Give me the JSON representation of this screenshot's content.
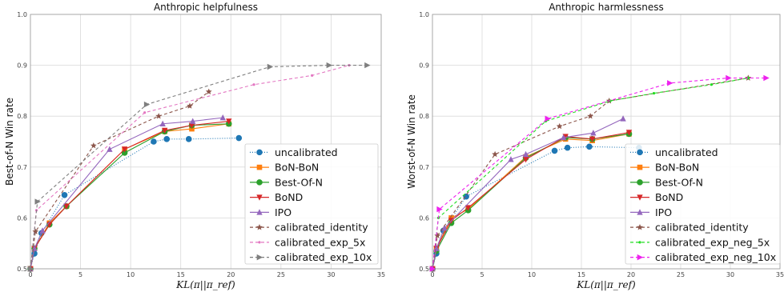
{
  "chart_data": [
    {
      "type": "line",
      "title": "Anthropic helpfulness",
      "xlabel": "KL(π||π_ref)",
      "ylabel": "Best-of-N Win rate",
      "xlim": [
        0,
        35
      ],
      "ylim": [
        0.5,
        1.0
      ],
      "xticks": [
        "0",
        "5",
        "10",
        "15",
        "20",
        "25",
        "30",
        "35"
      ],
      "yticks": [
        "0.5",
        "0.6",
        "0.7",
        "0.8",
        "0.9",
        "1.0"
      ],
      "grid": true,
      "legend_position": "lower-right",
      "series": [
        {
          "name": "uncalibrated",
          "color": "#1f77b4",
          "marker": "circle",
          "dash": "1,2",
          "x": [
            0,
            0.4,
            1.1,
            3.4,
            12.3,
            13.6,
            15.8,
            20.8
          ],
          "y": [
            0.5,
            0.53,
            0.57,
            0.645,
            0.75,
            0.755,
            0.755,
            0.757
          ]
        },
        {
          "name": "BoN-BoN",
          "color": "#ff7f0e",
          "marker": "square",
          "dash": "",
          "x": [
            0,
            0.4,
            1.9,
            3.6,
            9.4,
            13.4,
            16.1,
            19.8
          ],
          "y": [
            0.5,
            0.54,
            0.59,
            0.623,
            0.735,
            0.77,
            0.775,
            0.785
          ]
        },
        {
          "name": "Best-Of-N",
          "color": "#2ca02c",
          "marker": "circle",
          "dash": "",
          "x": [
            0,
            0.4,
            1.9,
            3.6,
            9.4,
            13.4,
            16.1,
            19.8
          ],
          "y": [
            0.5,
            0.54,
            0.587,
            0.623,
            0.728,
            0.77,
            0.782,
            0.785
          ]
        },
        {
          "name": "BoND",
          "color": "#d62728",
          "marker": "triangle-down",
          "dash": "",
          "x": [
            0,
            0.4,
            1.9,
            3.6,
            9.4,
            13.4,
            16.1,
            19.8
          ],
          "y": [
            0.5,
            0.54,
            0.587,
            0.623,
            0.735,
            0.772,
            0.782,
            0.79
          ]
        },
        {
          "name": "IPO",
          "color": "#9467bd",
          "marker": "triangle-up",
          "dash": "",
          "x": [
            0,
            0.4,
            1.2,
            7.9,
            13.2,
            16.2,
            19.2
          ],
          "y": [
            0.5,
            0.54,
            0.575,
            0.735,
            0.785,
            0.79,
            0.797
          ]
        },
        {
          "name": "calibrated_identity",
          "color": "#8c564b",
          "marker": "star",
          "dash": "4,3",
          "x": [
            0,
            0.5,
            6.3,
            12.8,
            15.9,
            17.8
          ],
          "y": [
            0.5,
            0.573,
            0.742,
            0.8,
            0.82,
            0.848
          ]
        },
        {
          "name": "calibrated_exp_5x",
          "color": "#e377c2",
          "marker": "dot",
          "dash": "4,3",
          "x": [
            0,
            0.6,
            11.4,
            22.3,
            28.1,
            31.8
          ],
          "y": [
            0.5,
            0.615,
            0.807,
            0.862,
            0.88,
            0.9
          ]
        },
        {
          "name": "calibrated_exp_10x",
          "color": "#7f7f7f",
          "marker": "triangle-right",
          "dash": "4,3",
          "x": [
            0,
            0.7,
            11.6,
            23.9,
            29.8,
            33.6
          ],
          "y": [
            0.5,
            0.632,
            0.823,
            0.897,
            0.9,
            0.9
          ]
        }
      ]
    },
    {
      "type": "line",
      "title": "Anthropic harmlessness",
      "xlabel": "KL(π||π_ref)",
      "ylabel": "Worst-of-N Win rate",
      "xlim": [
        0,
        35
      ],
      "ylim": [
        0.5,
        1.0
      ],
      "xticks": [
        "0",
        "5",
        "10",
        "15",
        "20",
        "25",
        "30",
        "35"
      ],
      "yticks": [
        "0.5",
        "0.6",
        "0.7",
        "0.8",
        "0.9",
        "1.0"
      ],
      "grid": true,
      "legend_position": "lower-right",
      "series": [
        {
          "name": "uncalibrated",
          "color": "#1f77b4",
          "marker": "circle",
          "dash": "1,2",
          "x": [
            0,
            0.4,
            1.1,
            3.4,
            12.3,
            13.6,
            15.8,
            20.8
          ],
          "y": [
            0.5,
            0.53,
            0.575,
            0.642,
            0.732,
            0.738,
            0.74,
            0.738
          ]
        },
        {
          "name": "BoN-BoN",
          "color": "#ff7f0e",
          "marker": "square",
          "dash": "",
          "x": [
            0,
            0.4,
            1.9,
            3.6,
            9.4,
            13.4,
            16.1,
            19.8
          ],
          "y": [
            0.5,
            0.54,
            0.6,
            0.617,
            0.72,
            0.755,
            0.752,
            0.765
          ]
        },
        {
          "name": "Best-Of-N",
          "color": "#2ca02c",
          "marker": "circle",
          "dash": "",
          "x": [
            0,
            0.4,
            1.9,
            3.6,
            9.4,
            13.4,
            16.1,
            19.8
          ],
          "y": [
            0.5,
            0.535,
            0.59,
            0.615,
            0.718,
            0.758,
            0.755,
            0.765
          ]
        },
        {
          "name": "BoND",
          "color": "#d62728",
          "marker": "triangle-down",
          "dash": "",
          "x": [
            0,
            0.4,
            1.9,
            3.6,
            9.4,
            13.4,
            16.1,
            19.8
          ],
          "y": [
            0.5,
            0.54,
            0.595,
            0.62,
            0.715,
            0.76,
            0.755,
            0.768
          ]
        },
        {
          "name": "IPO",
          "color": "#9467bd",
          "marker": "triangle-up",
          "dash": "",
          "x": [
            0,
            0.4,
            1.2,
            7.9,
            9.4,
            13.2,
            16.2,
            19.2
          ],
          "y": [
            0.5,
            0.54,
            0.58,
            0.715,
            0.725,
            0.758,
            0.767,
            0.795
          ]
        },
        {
          "name": "calibrated_identity",
          "color": "#8c564b",
          "marker": "star",
          "dash": "4,3",
          "x": [
            0,
            0.5,
            6.3,
            12.8,
            15.9,
            17.8,
            31.8
          ],
          "y": [
            0.5,
            0.565,
            0.725,
            0.78,
            0.8,
            0.83,
            0.875
          ]
        },
        {
          "name": "calibrated_exp_neg_5x",
          "color": "#22dd22",
          "marker": "dot",
          "dash": "4,3",
          "x": [
            0,
            0.6,
            11.4,
            17.9,
            22.3,
            28.1,
            31.8
          ],
          "y": [
            0.5,
            0.6,
            0.79,
            0.83,
            0.845,
            0.862,
            0.875
          ]
        },
        {
          "name": "calibrated_exp_neg_10x",
          "color": "#ee22ee",
          "marker": "triangle-right",
          "dash": "4,3",
          "x": [
            0,
            0.7,
            11.6,
            23.9,
            29.8,
            33.6
          ],
          "y": [
            0.5,
            0.617,
            0.795,
            0.865,
            0.875,
            0.875
          ]
        }
      ]
    }
  ]
}
